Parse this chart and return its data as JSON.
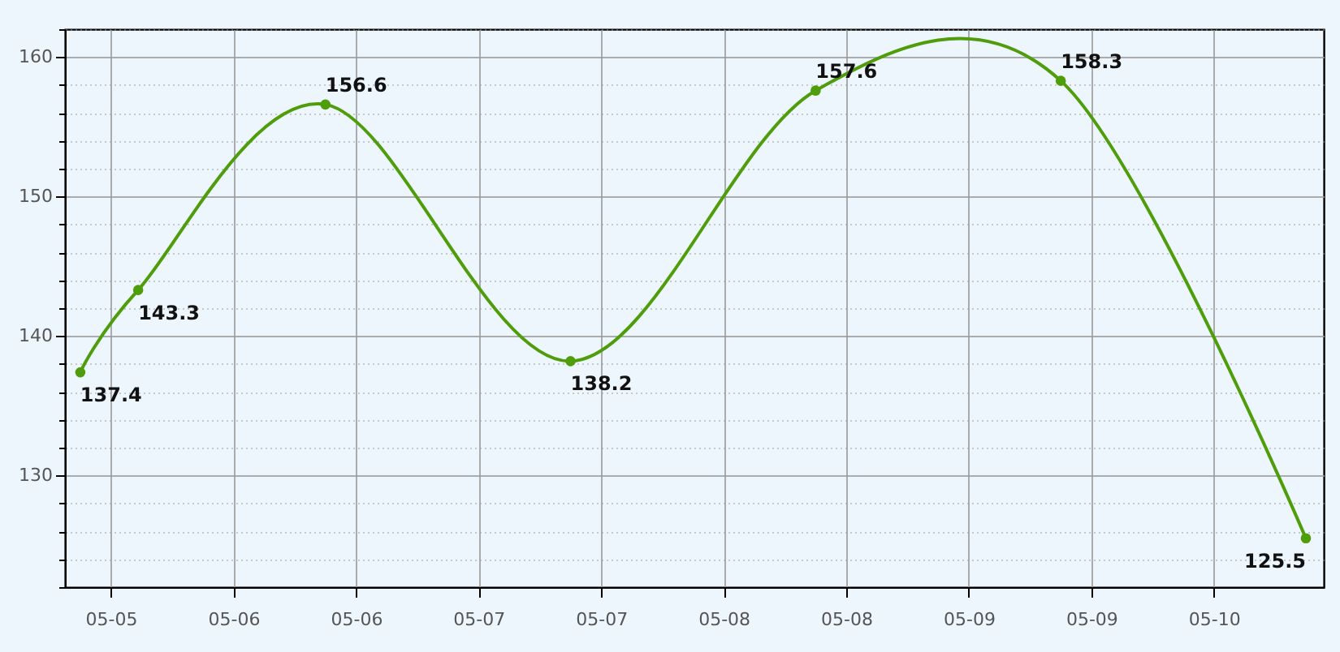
{
  "chart_data": {
    "type": "line",
    "x": [
      "--05-05T09:00",
      "--05-05T14:40",
      "--05-06T09:00",
      "--05-07T09:00",
      "--05-08T09:00",
      "--05-09T09:00",
      "--05-10T09:00"
    ],
    "series": [
      {
        "color": "#4f9d0b",
        "values": [
          137.4,
          143.3,
          156.6,
          138.2,
          157.6,
          158.3,
          125.5
        ]
      }
    ],
    "data_labels": true,
    "marker": "circle",
    "grid": true,
    "xlim": [
      "--05-05T07:30",
      "--05-10T10:45"
    ],
    "xticks": [
      {
        "value": "--05-05T12:00",
        "label": "05-05"
      },
      {
        "value": "--05-06T00:00",
        "label": "05-06"
      },
      {
        "value": "--05-06T12:00",
        "label": "05-06"
      },
      {
        "value": "--05-07T00:00",
        "label": "05-07"
      },
      {
        "value": "--05-07T12:00",
        "label": "05-07"
      },
      {
        "value": "--05-08T00:00",
        "label": "05-08"
      },
      {
        "value": "--05-08T12:00",
        "label": "05-08"
      },
      {
        "value": "--05-09T00:00",
        "label": "05-09"
      },
      {
        "value": "--05-09T12:00",
        "label": "05-09"
      },
      {
        "value": "--05-10T00:00",
        "label": "05-10"
      }
    ],
    "ylim": [
      122,
      162
    ],
    "yticks": [
      {
        "value": 122,
        "label": null
      },
      {
        "value": 124,
        "label": null
      },
      {
        "value": 126,
        "label": null
      },
      {
        "value": 128,
        "label": null
      },
      130,
      {
        "value": 132,
        "label": null
      },
      {
        "value": 134,
        "label": null
      },
      {
        "value": 136,
        "label": null
      },
      {
        "value": 138,
        "label": null
      },
      140,
      {
        "value": 142,
        "label": null
      },
      {
        "value": 144,
        "label": null
      },
      {
        "value": 146,
        "label": null
      },
      {
        "value": 148,
        "label": null
      },
      150,
      {
        "value": 152,
        "label": null
      },
      {
        "value": 154,
        "label": null
      },
      {
        "value": 156,
        "label": null
      },
      {
        "value": 158,
        "label": null
      },
      160,
      {
        "value": 162,
        "label": null
      }
    ]
  }
}
